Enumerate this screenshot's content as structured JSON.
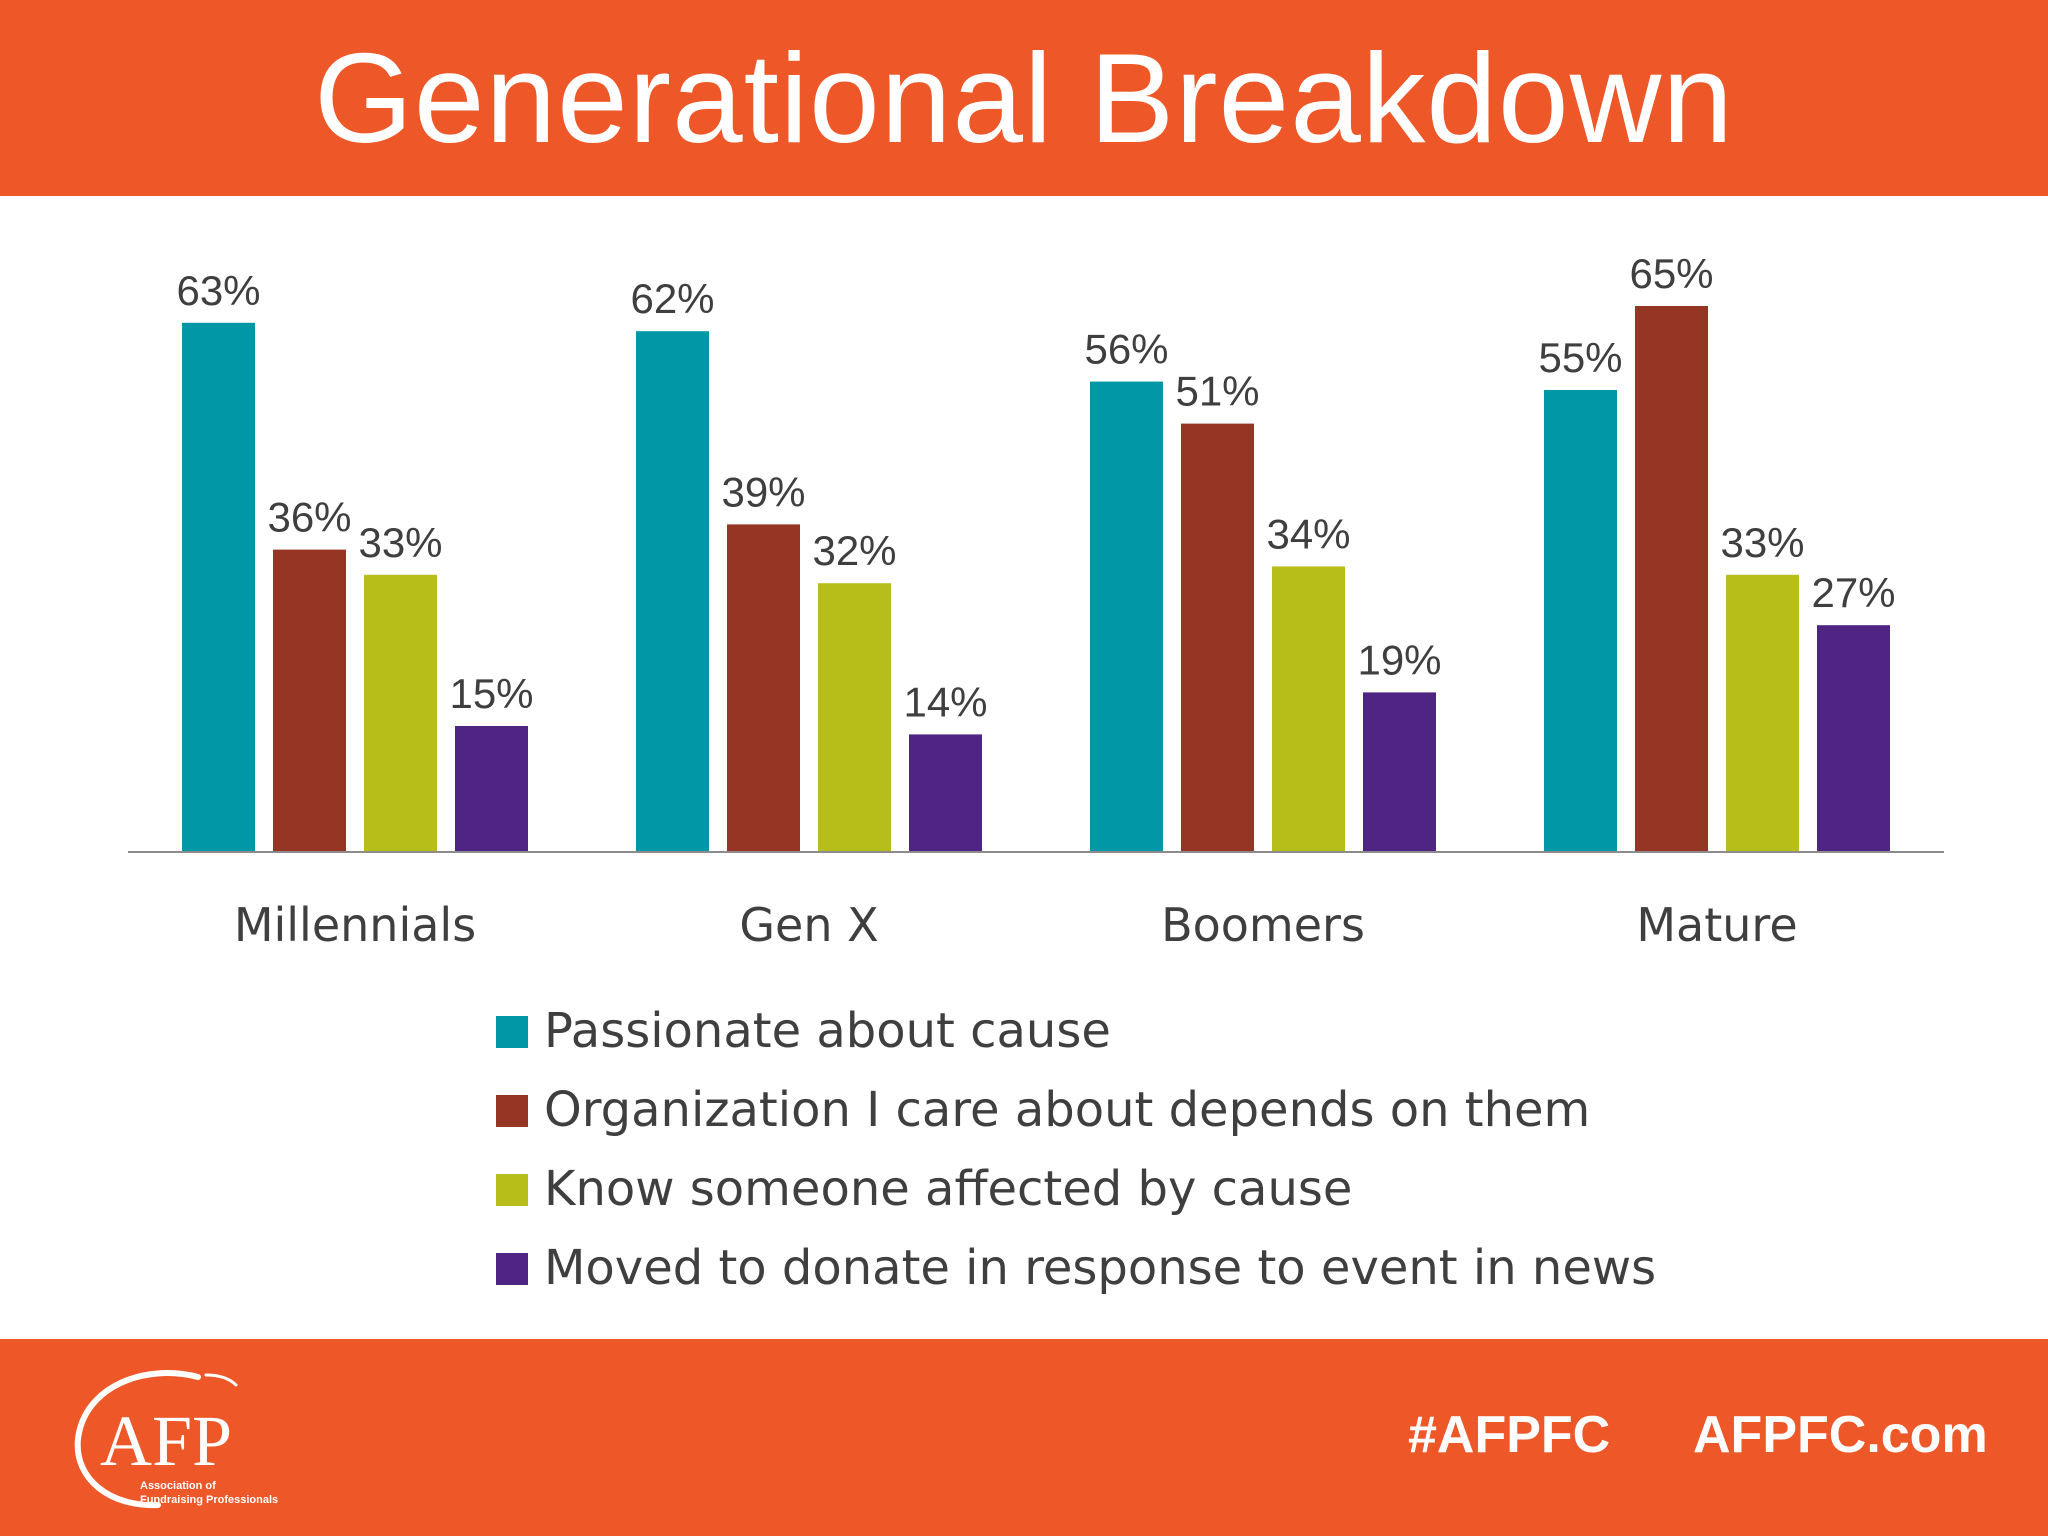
{
  "header": {
    "title": "Generational Breakdown"
  },
  "chart_data": {
    "type": "bar",
    "title": "",
    "xlabel": "",
    "ylabel": "",
    "ylim": [
      0,
      70
    ],
    "grid": false,
    "legend_position": "bottom",
    "categories": [
      "Millennials",
      "Gen X",
      "Boomers",
      "Mature"
    ],
    "series": [
      {
        "name": "Passionate about cause",
        "values": [
          63,
          62,
          56,
          55
        ],
        "labels": [
          "63%",
          "62%",
          "56%",
          "55%"
        ],
        "color": "#0098A6"
      },
      {
        "name": "Organization I care about depends on them",
        "values": [
          36,
          39,
          51,
          65
        ],
        "labels": [
          "36%",
          "39%",
          "51%",
          "65%"
        ],
        "color": "#953624"
      },
      {
        "name": "Know someone affected by cause",
        "values": [
          33,
          32,
          34,
          33
        ],
        "labels": [
          "33%",
          "32%",
          "34%",
          "33%"
        ],
        "color": "#B8BE19"
      },
      {
        "name": "Moved to donate in response to event in news",
        "values": [
          15,
          14,
          19,
          27
        ],
        "labels": [
          "15%",
          "14%",
          "19%",
          "27%"
        ],
        "color": "#4F2584"
      }
    ]
  },
  "logo": {
    "icon": "afp-logo-icon",
    "text": "AFP",
    "subtext_line1": "Association of",
    "subtext_line2": "Fundraising Professionals"
  },
  "footer": {
    "hashtag": "#AFPFC",
    "website": "AFPFC.com"
  },
  "colors": {
    "brand_orange": "#EE5728",
    "axis": "#8c8c8c",
    "text": "#3f3f3f"
  }
}
